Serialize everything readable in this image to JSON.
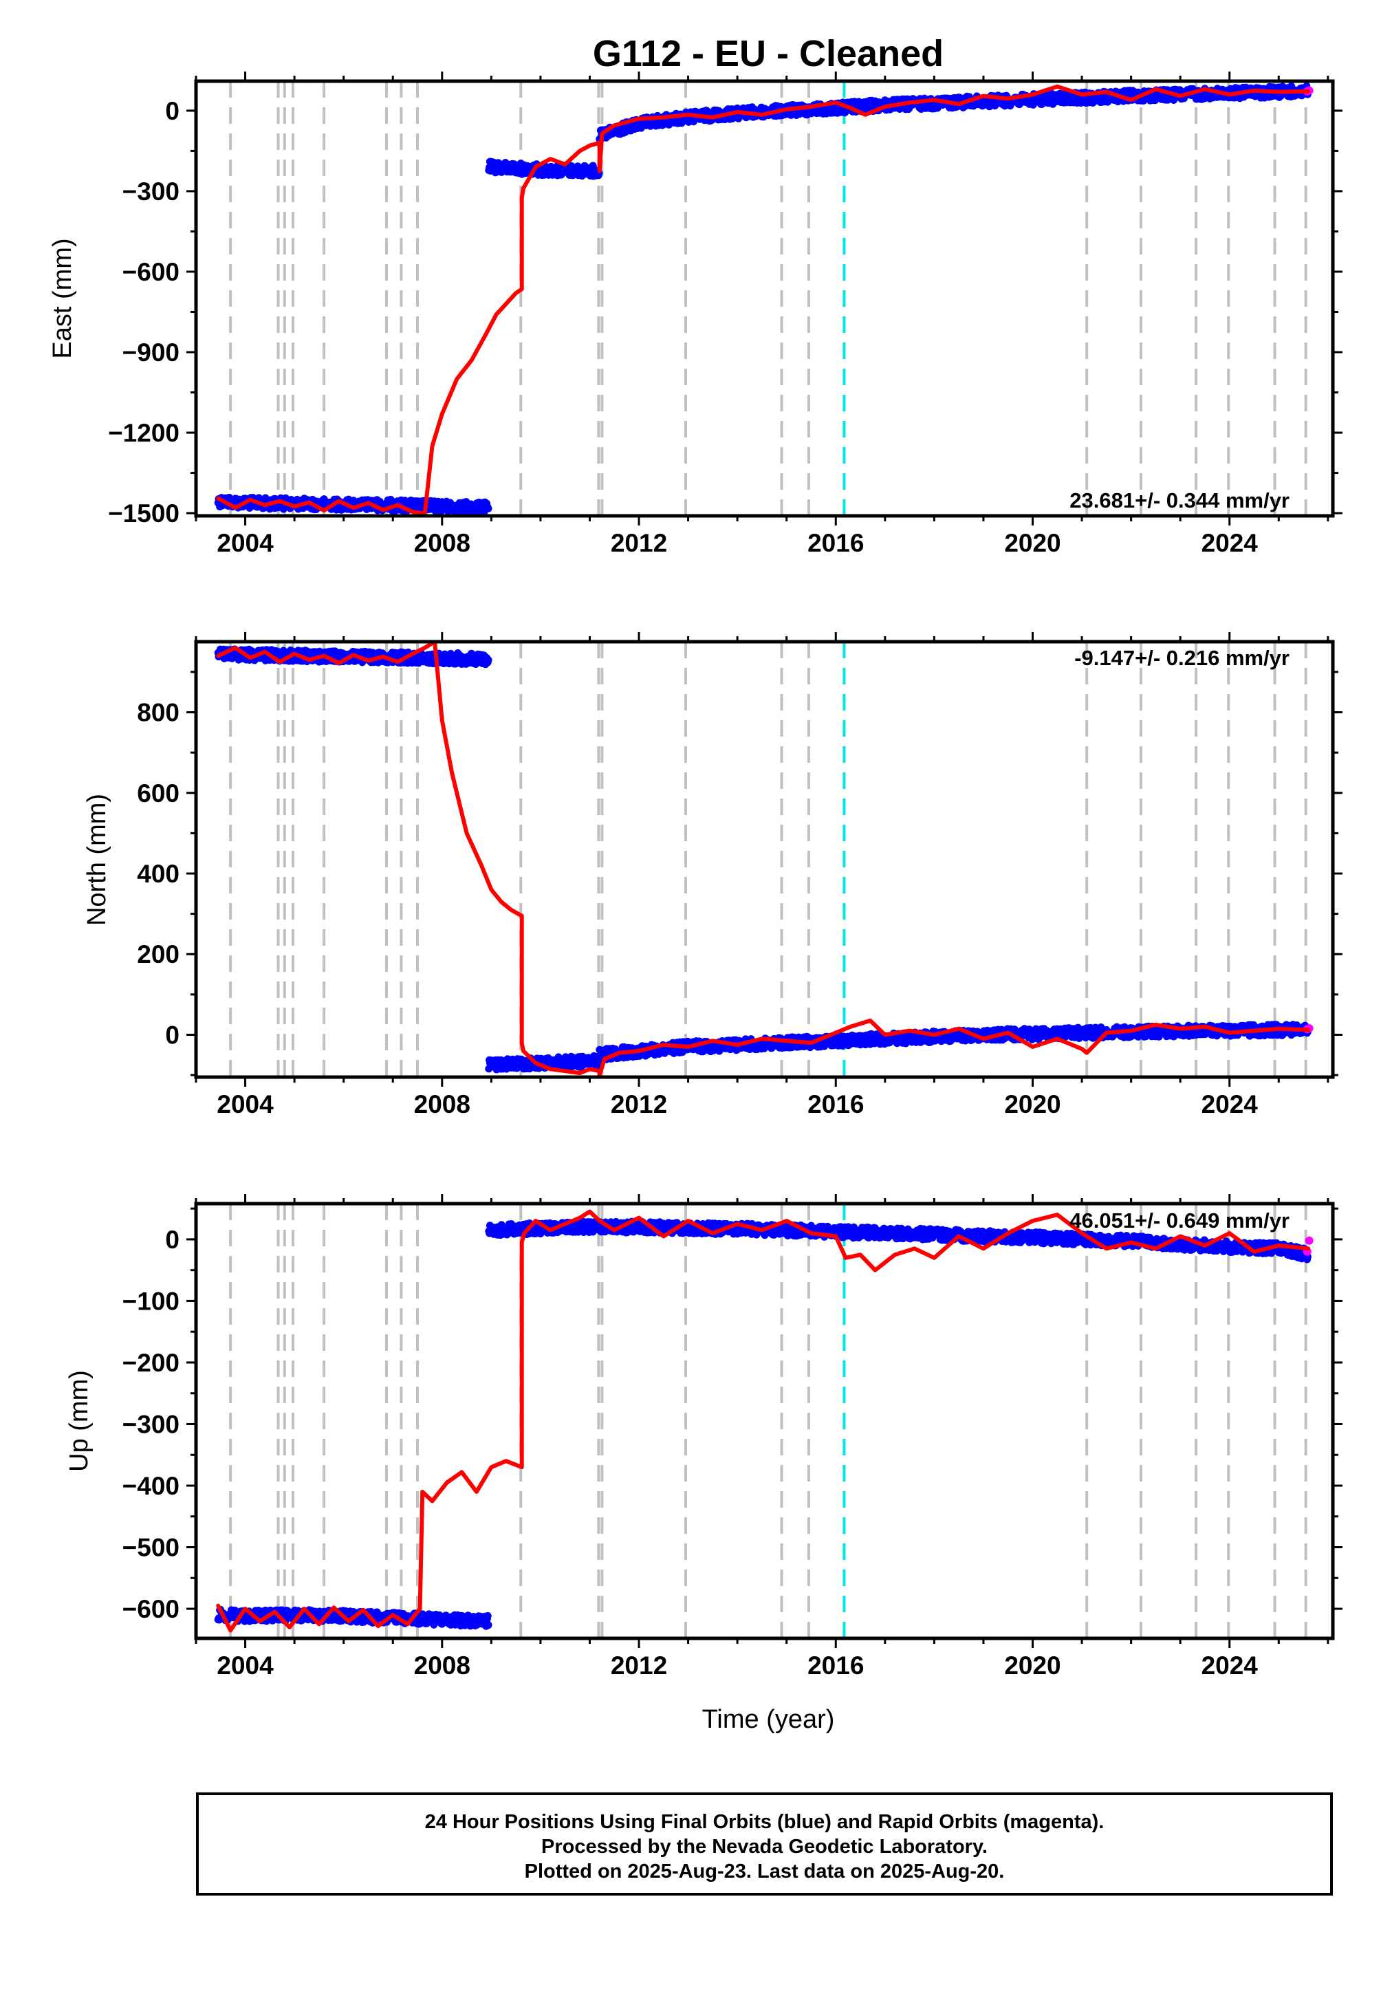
{
  "title": "G112  - EU - Cleaned",
  "colors": {
    "final": "#0000ff",
    "rapid": "#ff00ff",
    "model": "#ff0000",
    "equipment_change": "#c0c0c0",
    "earthquake": "#00e5e5",
    "frame": "#000000"
  },
  "xlabel": "Time (year)",
  "notes": [
    "24 Hour Positions Using Final Orbits (blue) and Rapid Orbits (magenta).",
    "Processed by the Nevada Geodetic Laboratory.",
    "Plotted on 2025-Aug-23. Last data on 2025-Aug-20."
  ],
  "chart_data": [
    {
      "type": "scatter",
      "component": "east",
      "ylabel": "East (mm)",
      "rate_text": "23.681+/- 0.344 mm/yr",
      "rate_position": "bottom-right",
      "xlim": [
        2003.0,
        2026.1
      ],
      "ylim": [
        -1510,
        110
      ],
      "xticks": [
        2004,
        2008,
        2012,
        2016,
        2020,
        2024
      ],
      "yticks": [
        0,
        -300,
        -600,
        -900,
        -1200,
        -1500
      ],
      "ytick_labels": [
        "0",
        "−300",
        "−600",
        "−900",
        "−1200",
        "−1500"
      ],
      "equipment_changes": [
        2003.7,
        2004.67,
        2004.8,
        2004.97,
        2005.6,
        2006.87,
        2007.17,
        2007.5,
        2009.6,
        2011.18,
        2011.25,
        2012.95,
        2014.9,
        2015.45,
        2021.1,
        2022.2,
        2023.32,
        2023.98,
        2024.92,
        2025.55
      ],
      "earthquakes": [
        2016.17
      ],
      "final_segments": [
        {
          "x": [
            2003.45,
            2004.0,
            2005.0,
            2006.0,
            2007.0,
            2008.0,
            2008.5,
            2008.95
          ],
          "y": [
            -1455,
            -1462,
            -1465,
            -1468,
            -1470,
            -1475,
            -1478,
            -1480
          ]
        },
        {
          "x": [
            2008.95,
            2009.5,
            2010.0,
            2010.5,
            2011.2
          ],
          "y": [
            -210,
            -215,
            -220,
            -222,
            -225
          ]
        },
        {
          "x": [
            2011.2,
            2011.6,
            2012.0,
            2012.5,
            2013.0,
            2013.5,
            2014.0,
            2015.0,
            2016.0,
            2017.0,
            2018.0,
            2019.0,
            2020.0,
            2021.0,
            2022.0,
            2023.0,
            2024.0,
            2025.0,
            2025.6
          ],
          "y": [
            -95,
            -70,
            -50,
            -35,
            -25,
            -17,
            -10,
            0,
            10,
            20,
            28,
            35,
            42,
            48,
            55,
            60,
            65,
            70,
            72
          ]
        }
      ],
      "rapid_points": {
        "x": [
          2025.58,
          2025.62
        ],
        "y": [
          72,
          75
        ]
      },
      "model_segments": [
        {
          "x": [
            2003.45,
            2003.8,
            2004.1,
            2004.4,
            2004.7,
            2005.0,
            2005.3,
            2005.6,
            2005.9,
            2006.2,
            2006.5,
            2006.8,
            2007.1,
            2007.4,
            2007.65
          ],
          "y": [
            -1445,
            -1480,
            -1450,
            -1470,
            -1455,
            -1475,
            -1460,
            -1490,
            -1455,
            -1480,
            -1462,
            -1488,
            -1470,
            -1495,
            -1502
          ]
        },
        {
          "x": [
            2007.65,
            2007.8,
            2008.0,
            2008.3,
            2008.6,
            2008.9,
            2009.1,
            2009.3,
            2009.5,
            2009.62
          ],
          "y": [
            -1502,
            -1250,
            -1130,
            -1000,
            -930,
            -830,
            -760,
            -720,
            -680,
            -665
          ]
        },
        {
          "x": [
            2009.62,
            2009.65,
            2009.9,
            2010.2,
            2010.5,
            2010.8,
            2011.0,
            2011.2
          ],
          "y": [
            -325,
            -290,
            -210,
            -180,
            -200,
            -150,
            -130,
            -120
          ]
        },
        {
          "x": [
            2011.2,
            2011.25,
            2011.5,
            2012.0,
            2012.5,
            2013.0,
            2013.5,
            2014.0,
            2014.5,
            2015.0,
            2015.5,
            2016.0,
            2016.3,
            2016.6,
            2017.0,
            2017.5,
            2018.0,
            2018.5,
            2019.0,
            2019.5,
            2020.0,
            2020.5,
            2021.0,
            2021.5,
            2022.0,
            2022.5,
            2023.0,
            2023.5,
            2024.0,
            2024.5,
            2025.0,
            2025.6
          ],
          "y": [
            -225,
            -85,
            -55,
            -30,
            -25,
            -15,
            -25,
            -5,
            -15,
            5,
            15,
            30,
            10,
            -15,
            15,
            30,
            40,
            25,
            55,
            45,
            60,
            90,
            60,
            70,
            40,
            80,
            55,
            80,
            60,
            75,
            70,
            72
          ]
        }
      ]
    },
    {
      "type": "scatter",
      "component": "north",
      "ylabel": "North (mm)",
      "rate_text": "-9.147+/- 0.216 mm/yr",
      "rate_position": "top-right",
      "xlim": [
        2003.0,
        2026.1
      ],
      "ylim": [
        -105,
        975
      ],
      "xticks": [
        2004,
        2008,
        2012,
        2016,
        2020,
        2024
      ],
      "yticks": [
        0,
        200,
        400,
        600,
        800
      ],
      "ytick_labels": [
        "0",
        "200",
        "400",
        "600",
        "800"
      ],
      "equipment_changes": [
        2003.7,
        2004.67,
        2004.8,
        2004.97,
        2005.6,
        2006.87,
        2007.17,
        2007.5,
        2009.6,
        2011.18,
        2011.25,
        2012.95,
        2014.9,
        2015.45,
        2021.1,
        2022.2,
        2023.32,
        2023.98,
        2024.92,
        2025.55
      ],
      "earthquakes": [
        2016.17
      ],
      "final_segments": [
        {
          "x": [
            2003.45,
            2004.0,
            2005.0,
            2006.0,
            2007.0,
            2008.0,
            2008.95
          ],
          "y": [
            945,
            943,
            940,
            938,
            936,
            934,
            932
          ]
        },
        {
          "x": [
            2008.95,
            2009.5,
            2010.0,
            2010.5,
            2011.2
          ],
          "y": [
            -75,
            -72,
            -70,
            -68,
            -65
          ]
        },
        {
          "x": [
            2011.2,
            2012.0,
            2013.0,
            2014.0,
            2015.0,
            2016.0,
            2017.0,
            2018.0,
            2019.0,
            2020.0,
            2021.0,
            2022.0,
            2023.0,
            2024.0,
            2025.0,
            2025.6
          ],
          "y": [
            -50,
            -40,
            -30,
            -25,
            -20,
            -15,
            -10,
            -5,
            0,
            2,
            5,
            7,
            9,
            10,
            12,
            12
          ]
        }
      ],
      "rapid_points": {
        "x": [
          2025.58,
          2025.62
        ],
        "y": [
          14,
          16
        ]
      },
      "model_segments": [
        {
          "x": [
            2003.45,
            2003.8,
            2004.1,
            2004.4,
            2004.7,
            2005.0,
            2005.3,
            2005.6,
            2005.9,
            2006.2,
            2006.5,
            2006.8,
            2007.1,
            2007.4,
            2007.65,
            2007.85
          ],
          "y": [
            940,
            960,
            935,
            950,
            925,
            945,
            930,
            940,
            922,
            942,
            928,
            938,
            925,
            945,
            960,
            975
          ]
        },
        {
          "x": [
            2007.85,
            2008.0,
            2008.2,
            2008.5,
            2008.8,
            2009.0,
            2009.2,
            2009.4,
            2009.62
          ],
          "y": [
            975,
            780,
            650,
            500,
            420,
            360,
            330,
            310,
            295
          ]
        },
        {
          "x": [
            2009.62,
            2009.65,
            2009.9,
            2010.2,
            2010.5,
            2010.8,
            2011.0,
            2011.2
          ],
          "y": [
            -20,
            -40,
            -70,
            -85,
            -90,
            -95,
            -85,
            -90
          ]
        },
        {
          "x": [
            2011.2,
            2011.3,
            2011.6,
            2012.0,
            2012.5,
            2013.0,
            2013.5,
            2014.0,
            2014.5,
            2015.0,
            2015.5,
            2016.0,
            2016.3,
            2016.7,
            2017.0,
            2017.5,
            2018.0,
            2018.5,
            2019.0,
            2019.5,
            2020.0,
            2020.5,
            2021.0,
            2021.1,
            2021.5,
            2022.0,
            2022.5,
            2023.0,
            2023.5,
            2024.0,
            2024.5,
            2025.0,
            2025.6
          ],
          "y": [
            -100,
            -60,
            -45,
            -40,
            -25,
            -30,
            -15,
            -25,
            -10,
            -15,
            -20,
            5,
            20,
            35,
            0,
            10,
            0,
            15,
            -10,
            5,
            -30,
            -10,
            -35,
            -45,
            5,
            10,
            25,
            15,
            20,
            5,
            10,
            15,
            12
          ]
        }
      ]
    },
    {
      "type": "scatter",
      "component": "up",
      "ylabel": "Up (mm)",
      "rate_text": "46.051+/- 0.649 mm/yr",
      "rate_position": "top-right",
      "xlim": [
        2003.0,
        2026.1
      ],
      "ylim": [
        -648,
        58
      ],
      "xticks": [
        2004,
        2008,
        2012,
        2016,
        2020,
        2024
      ],
      "yticks": [
        0,
        -100,
        -200,
        -300,
        -400,
        -500,
        -600
      ],
      "ytick_labels": [
        "0",
        "−100",
        "−200",
        "−300",
        "−400",
        "−500",
        "−600"
      ],
      "equipment_changes": [
        2003.7,
        2004.67,
        2004.8,
        2004.97,
        2005.6,
        2006.87,
        2007.17,
        2007.5,
        2009.6,
        2011.18,
        2011.25,
        2012.95,
        2014.9,
        2015.45,
        2021.1,
        2022.2,
        2023.32,
        2023.98,
        2024.92,
        2025.55
      ],
      "earthquakes": [
        2016.17
      ],
      "final_segments": [
        {
          "x": [
            2003.45,
            2004.0,
            2005.0,
            2006.0,
            2007.0,
            2008.0,
            2008.95
          ],
          "y": [
            -610,
            -612,
            -610,
            -612,
            -615,
            -618,
            -620
          ]
        },
        {
          "x": [
            2008.95,
            2010.0,
            2011.0,
            2012.0,
            2013.0,
            2014.0,
            2015.0,
            2016.0,
            2017.0,
            2018.0,
            2019.0,
            2020.0,
            2021.0,
            2022.0,
            2023.0,
            2024.0,
            2025.0,
            2025.6
          ],
          "y": [
            15,
            18,
            20,
            20,
            18,
            17,
            15,
            12,
            10,
            8,
            5,
            3,
            0,
            -3,
            -8,
            -12,
            -15,
            -25
          ]
        }
      ],
      "rapid_points": {
        "x": [
          2025.58,
          2025.62
        ],
        "y": [
          -20,
          -2
        ]
      },
      "model_segments": [
        {
          "x": [
            2003.45,
            2003.7,
            2004.0,
            2004.3,
            2004.6,
            2004.9,
            2005.2,
            2005.5,
            2005.8,
            2006.1,
            2006.4,
            2006.7,
            2007.0,
            2007.3,
            2007.55
          ],
          "y": [
            -595,
            -635,
            -600,
            -620,
            -605,
            -630,
            -600,
            -625,
            -598,
            -620,
            -602,
            -628,
            -610,
            -625,
            -600
          ]
        },
        {
          "x": [
            2007.55,
            2007.6,
            2007.8,
            2008.1,
            2008.4,
            2008.7,
            2009.0,
            2009.3,
            2009.62
          ],
          "y": [
            -600,
            -410,
            -425,
            -395,
            -378,
            -410,
            -370,
            -360,
            -370
          ]
        },
        {
          "x": [
            2009.62,
            2009.67,
            2009.9,
            2010.2,
            2010.5,
            2010.8,
            2011.0,
            2011.2,
            2011.5,
            2012.0,
            2012.5,
            2013.0,
            2013.5,
            2014.0,
            2014.5,
            2015.0,
            2015.5,
            2016.0,
            2016.2,
            2016.5,
            2016.8,
            2017.2,
            2017.6,
            2018.0,
            2018.5,
            2019.0,
            2019.5,
            2020.0,
            2020.5,
            2021.0,
            2021.5,
            2022.0,
            2022.5,
            2023.0,
            2023.5,
            2024.0,
            2024.5,
            2025.0,
            2025.6
          ],
          "y": [
            -5,
            10,
            30,
            15,
            25,
            35,
            45,
            30,
            15,
            35,
            5,
            30,
            10,
            25,
            15,
            30,
            10,
            5,
            -30,
            -25,
            -50,
            -25,
            -15,
            -30,
            5,
            -15,
            10,
            30,
            40,
            10,
            -15,
            -5,
            -15,
            5,
            -10,
            10,
            -20,
            -10,
            -15
          ]
        }
      ]
    }
  ]
}
